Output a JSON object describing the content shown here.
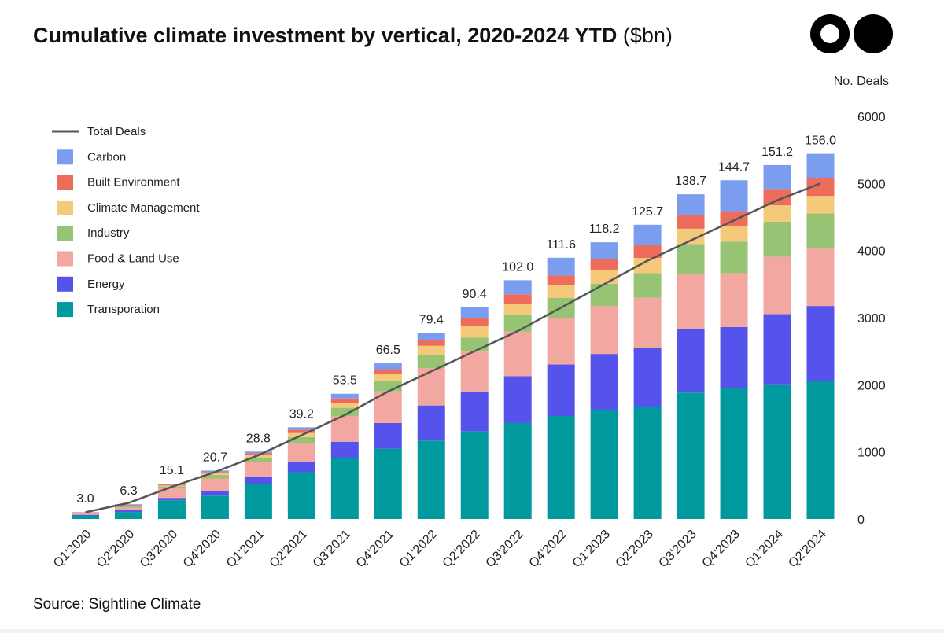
{
  "title": {
    "main": "Cumulative climate investment by vertical, 2020-2024 YTD",
    "unit": "($bn)"
  },
  "source": "Source: Sightline Climate",
  "chart_data": {
    "type": "bar",
    "stacked": true,
    "title": "Cumulative climate investment by vertical, 2020-2024 YTD ($bn)",
    "categories": [
      "Q1'2020",
      "Q2'2020",
      "Q3'2020",
      "Q4'2020",
      "Q1'2021",
      "Q2'2021",
      "Q3'2021",
      "Q4'2021",
      "Q1'2022",
      "Q2'2022",
      "Q3'2022",
      "Q4'2022",
      "Q1'2023",
      "Q2'2023",
      "Q3'2023",
      "Q4'2023",
      "Q1'2024",
      "Q2'2024"
    ],
    "totals": [
      3.0,
      6.3,
      15.1,
      20.7,
      28.8,
      39.2,
      53.5,
      66.5,
      79.4,
      90.4,
      102.0,
      111.6,
      118.2,
      125.7,
      138.7,
      144.7,
      151.2,
      156.0
    ],
    "series": [
      {
        "name": "Transporation",
        "color": "#00999d",
        "values": [
          1.5,
          3.0,
          8.0,
          10.0,
          15.0,
          20.0,
          26.0,
          30.0,
          33.5,
          37.5,
          41.0,
          44.0,
          46.5,
          48.0,
          54.0,
          56.0,
          57.5,
          59.0
        ]
      },
      {
        "name": "Energy",
        "color": "#5553ec",
        "values": [
          0.3,
          0.7,
          1.0,
          2.0,
          3.0,
          4.5,
          7.0,
          11.0,
          15.0,
          17.0,
          20.0,
          22.0,
          24.0,
          25.0,
          27.0,
          26.0,
          30.0,
          32.0
        ]
      },
      {
        "name": "Food & Land Use",
        "color": "#f2a8a0",
        "values": [
          0.6,
          1.2,
          4.3,
          5.3,
          6.5,
          8.0,
          11.0,
          13.5,
          16.0,
          17.0,
          19.0,
          20.0,
          20.5,
          21.5,
          23.5,
          23.0,
          24.5,
          24.5
        ]
      },
      {
        "name": "Industry",
        "color": "#97c474",
        "values": [
          0.2,
          0.5,
          0.6,
          1.5,
          1.5,
          2.5,
          3.5,
          4.5,
          5.5,
          6.0,
          7.0,
          8.5,
          9.5,
          10.5,
          13.0,
          13.5,
          15.0,
          15.0
        ]
      },
      {
        "name": "Climate Management",
        "color": "#f5c97a",
        "values": [
          0.2,
          0.3,
          0.4,
          0.7,
          1.3,
          1.7,
          2.2,
          2.8,
          4.0,
          5.0,
          5.0,
          5.5,
          6.0,
          6.5,
          6.5,
          6.5,
          7.0,
          7.5
        ]
      },
      {
        "name": "Built Environment",
        "color": "#ee6c5c",
        "values": [
          0.1,
          0.3,
          0.4,
          0.6,
          0.8,
          1.4,
          1.8,
          2.2,
          2.5,
          3.5,
          4.0,
          4.0,
          4.7,
          5.5,
          6.0,
          6.5,
          7.0,
          7.5
        ]
      },
      {
        "name": "Carbon",
        "color": "#7b9df0",
        "values": [
          0.1,
          0.3,
          0.4,
          0.6,
          0.7,
          1.1,
          2.0,
          2.5,
          2.9,
          4.4,
          6.0,
          7.6,
          7.0,
          8.7,
          8.7,
          13.2,
          10.2,
          10.5
        ]
      }
    ],
    "line": {
      "name": "Total Deals",
      "color": "#555555",
      "axis": "right",
      "values": [
        100,
        240,
        480,
        700,
        950,
        1250,
        1550,
        1900,
        2200,
        2500,
        2800,
        3150,
        3500,
        3850,
        4150,
        4450,
        4750,
        5000
      ]
    },
    "ylim_left": [
      0,
      172
    ],
    "y_right": {
      "label": "No. Deals",
      "ticks": [
        0,
        1000,
        2000,
        3000,
        4000,
        5000,
        6000
      ],
      "lim": [
        0,
        6000
      ]
    },
    "legend": {
      "position": "top-left",
      "order": [
        "Total Deals",
        "Carbon",
        "Built Environment",
        "Climate Management",
        "Industry",
        "Food & Land Use",
        "Energy",
        "Transporation"
      ]
    }
  }
}
